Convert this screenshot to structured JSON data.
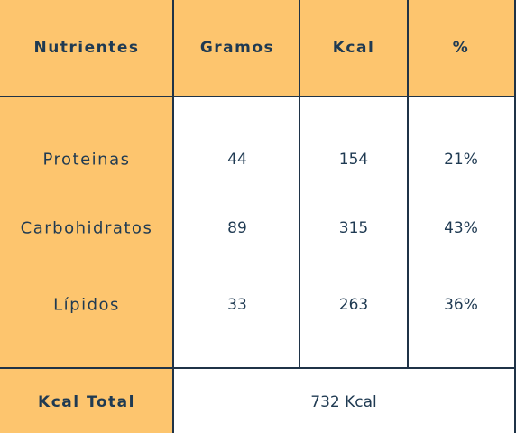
{
  "table": {
    "header": [
      "Nutrientes",
      "Gramos",
      "Kcal",
      "%"
    ],
    "rows": [
      [
        "Proteinas",
        "44",
        "154",
        "21%"
      ],
      [
        "Carbohidratos",
        "89",
        "315",
        "43%"
      ],
      [
        "Lípidos",
        "33",
        "263",
        "36%"
      ]
    ],
    "footer": {
      "label": "Kcal Total",
      "value": "732 Kcal"
    }
  }
}
